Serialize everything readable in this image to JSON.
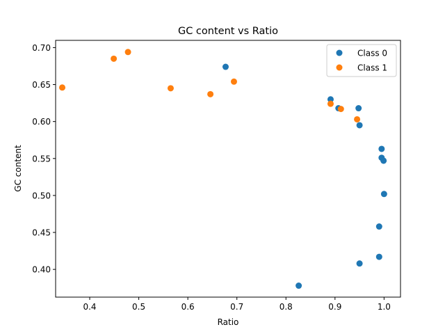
{
  "chart_data": {
    "type": "scatter",
    "title": "GC content vs Ratio",
    "xlabel": "Ratio",
    "ylabel": "GC content",
    "xlim": [
      0.3305,
      1.0335
    ],
    "ylim": [
      0.3625,
      0.7098
    ],
    "xticks": [
      0.4,
      0.5,
      0.6,
      0.7,
      0.8,
      0.9,
      1.0
    ],
    "xtick_labels": [
      "0.4",
      "0.5",
      "0.6",
      "0.7",
      "0.8",
      "0.9",
      "1.0"
    ],
    "yticks": [
      0.4,
      0.45,
      0.5,
      0.55,
      0.6,
      0.65,
      0.7
    ],
    "ytick_labels": [
      "0.40",
      "0.45",
      "0.50",
      "0.55",
      "0.60",
      "0.65",
      "0.70"
    ],
    "grid": false,
    "legend": "top-right",
    "series": [
      {
        "name": "Class 0",
        "color": "#1f77b4",
        "points": [
          [
            0.677,
            0.674
          ],
          [
            0.891,
            0.63
          ],
          [
            0.907,
            0.618
          ],
          [
            0.948,
            0.618
          ],
          [
            0.95,
            0.595
          ],
          [
            0.995,
            0.563
          ],
          [
            0.995,
            0.551
          ],
          [
            0.999,
            0.547
          ],
          [
            1.0,
            0.502
          ],
          [
            0.99,
            0.458
          ],
          [
            0.99,
            0.417
          ],
          [
            0.95,
            0.408
          ],
          [
            0.826,
            0.378
          ]
        ]
      },
      {
        "name": "Class 1",
        "color": "#ff7f0e",
        "points": [
          [
            0.344,
            0.646
          ],
          [
            0.449,
            0.685
          ],
          [
            0.478,
            0.694
          ],
          [
            0.565,
            0.645
          ],
          [
            0.646,
            0.637
          ],
          [
            0.694,
            0.654
          ],
          [
            0.891,
            0.624
          ],
          [
            0.912,
            0.617
          ],
          [
            0.945,
            0.603
          ]
        ]
      }
    ]
  }
}
